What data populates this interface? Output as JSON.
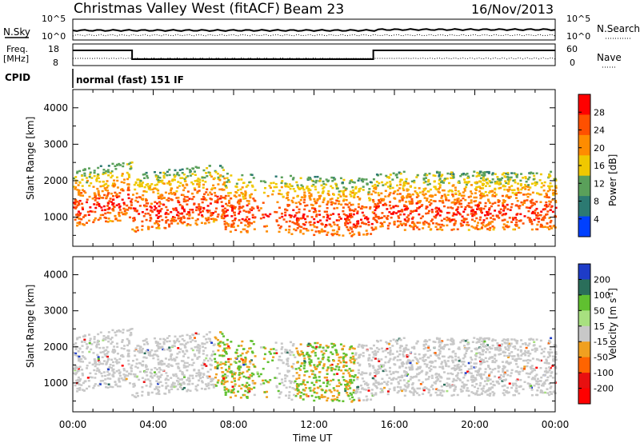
{
  "header": {
    "title": "Christmas Valley West (fitACF)",
    "beam": "Beam 23",
    "date": "16/Nov/2013"
  },
  "top_panels": {
    "nsky_label": "N.Sky",
    "nsky_ticks": [
      "10^5",
      "10^0"
    ],
    "nsearch_label": "N.Search",
    "freq_label": "Freq.",
    "freq_unit": "[MHz]",
    "freq_ticks": [
      "18",
      "8"
    ],
    "nave_ticks": [
      "60",
      "0"
    ],
    "nave_label": "Nave",
    "cpid_label": "CPID",
    "cpid_text": "normal (fast) 151 IF"
  },
  "chart_data": [
    {
      "type": "heatmap",
      "name": "power",
      "ylabel": "Slant Range [km]",
      "yticks": [
        1000,
        2000,
        3000,
        4000
      ],
      "ylim": [
        200,
        4500
      ],
      "xlim": [
        0,
        24
      ],
      "colorbar_label": "Power [dB]",
      "colorbar_ticks": [
        "28",
        "24",
        "20",
        "16",
        "12",
        "8",
        "4"
      ],
      "colorbar_colors": [
        "#ff0000",
        "#ff5000",
        "#ff8c00",
        "#f0c800",
        "#5aa05a",
        "#2c7a72",
        "#0040ff"
      ]
    },
    {
      "type": "heatmap",
      "name": "velocity",
      "ylabel": "Slant Range [km]",
      "yticks": [
        1000,
        2000,
        3000,
        4000
      ],
      "ylim": [
        200,
        4500
      ],
      "xlim": [
        0,
        24
      ],
      "colorbar_label": "Velocity [m s",
      "colorbar_label_sup": "-1",
      "colorbar_label_end": "]",
      "colorbar_ticks": [
        "200",
        "100",
        "50",
        "15",
        "-15",
        "-50",
        "-100",
        "-200"
      ],
      "colorbar_colors": [
        "#1e3cc8",
        "#2a6e5a",
        "#60c030",
        "#a8e080",
        "#c8c8c8",
        "#f0a020",
        "#ff6400",
        "#e81010",
        "#ff0000"
      ]
    }
  ],
  "x_axis": {
    "label": "Time UT",
    "ticks": [
      "00:00",
      "04:00",
      "08:00",
      "12:00",
      "16:00",
      "20:00",
      "00:00"
    ]
  }
}
